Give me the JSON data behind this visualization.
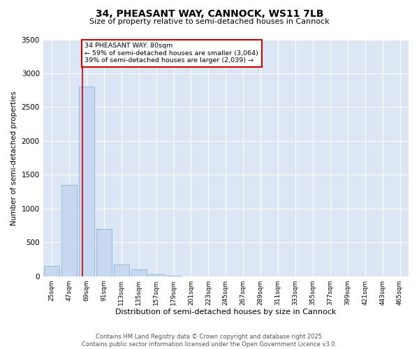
{
  "title": "34, PHEASANT WAY, CANNOCK, WS11 7LB",
  "subtitle": "Size of property relative to semi-detached houses in Cannock",
  "xlabel": "Distribution of semi-detached houses by size in Cannock",
  "ylabel": "Number of semi-detached properties",
  "property_label": "34 PHEASANT WAY: 80sqm",
  "pct_smaller": 59,
  "pct_larger": 39,
  "count_smaller": 3064,
  "count_larger": 2039,
  "categories": [
    "25sqm",
    "47sqm",
    "69sqm",
    "91sqm",
    "113sqm",
    "135sqm",
    "157sqm",
    "179sqm",
    "201sqm",
    "223sqm",
    "245sqm",
    "267sqm",
    "289sqm",
    "311sqm",
    "333sqm",
    "355sqm",
    "377sqm",
    "399sqm",
    "421sqm",
    "443sqm",
    "465sqm"
  ],
  "bar_values": [
    150,
    1350,
    2800,
    700,
    170,
    100,
    30,
    5,
    0,
    0,
    0,
    0,
    0,
    0,
    0,
    0,
    0,
    0,
    0,
    0,
    0
  ],
  "bar_color": "#c8d8f0",
  "bar_edge_color": "#7aaad0",
  "vline_color": "#cc0000",
  "vline_x": 1.77,
  "annotation_box_color": "#cc0000",
  "background_color": "#dce6f5",
  "ylim": [
    0,
    3500
  ],
  "yticks": [
    0,
    500,
    1000,
    1500,
    2000,
    2500,
    3000,
    3500
  ],
  "footer_line1": "Contains HM Land Registry data © Crown copyright and database right 2025.",
  "footer_line2": "Contains public sector information licensed under the Open Government Licence v3.0."
}
